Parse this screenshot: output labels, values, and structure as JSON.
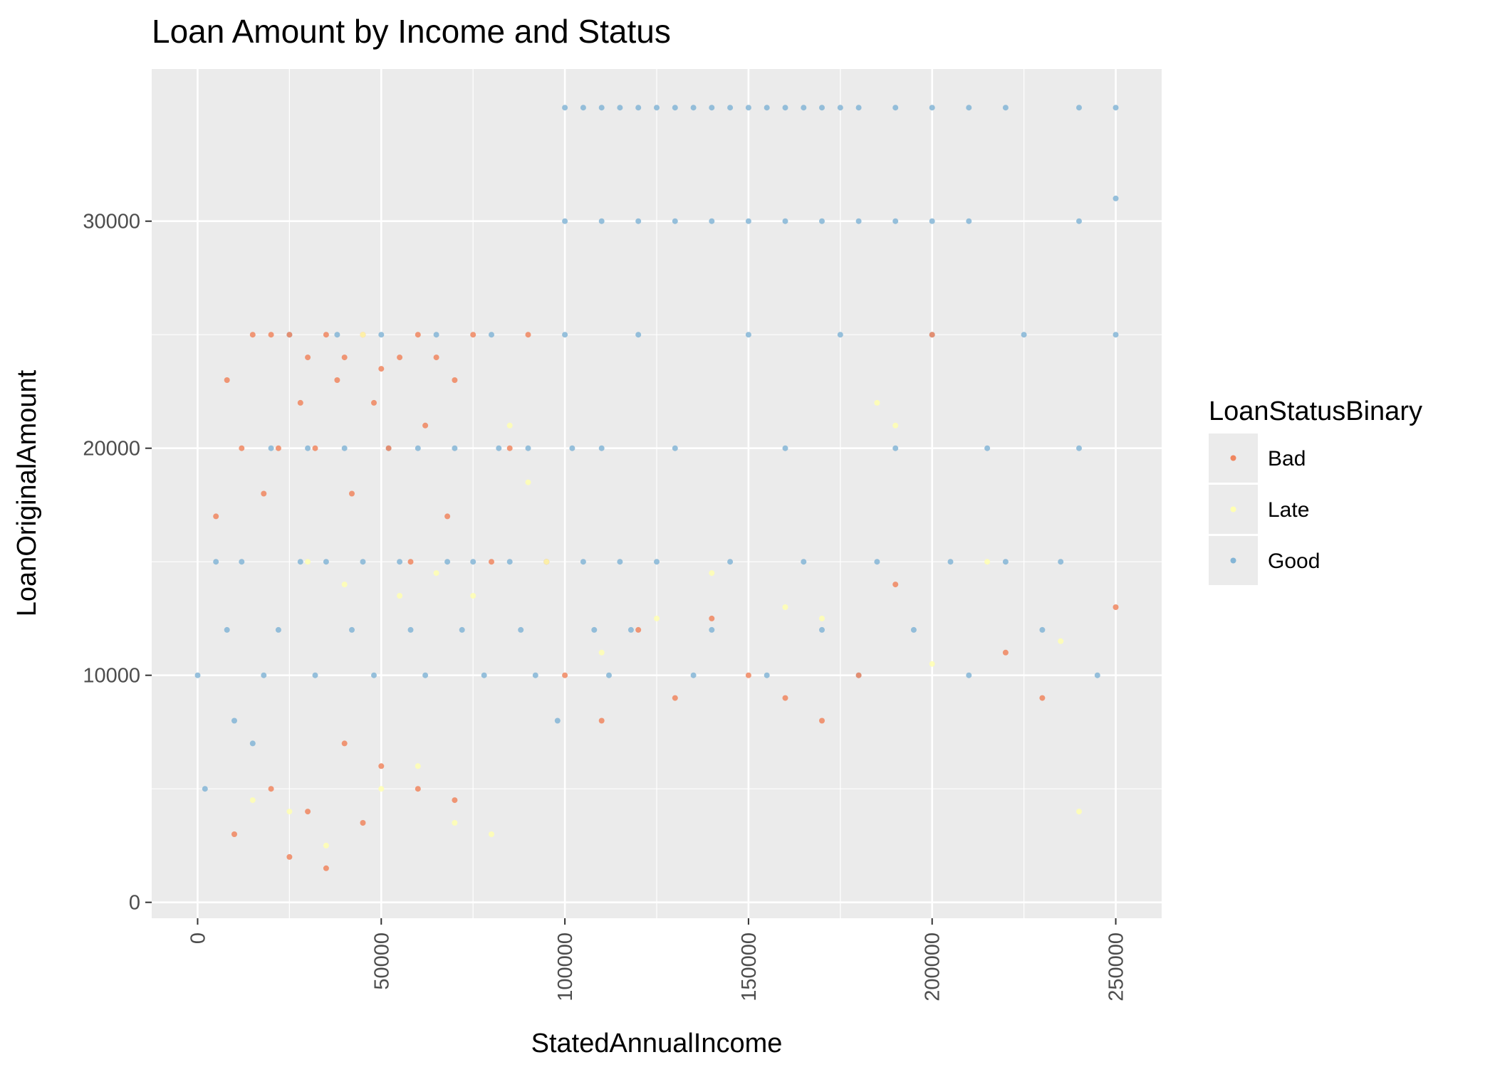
{
  "chart_data": {
    "type": "scatter",
    "title": "Loan Amount by Income and Status",
    "xlabel": "StatedAnnualIncome",
    "ylabel": "LoanOriginalAmount",
    "xlim": [
      -12500,
      262500
    ],
    "ylim": [
      -700,
      36700
    ],
    "x_ticks": [
      0,
      50000,
      100000,
      150000,
      200000,
      250000
    ],
    "x_tick_labels": [
      "0",
      "50000",
      "100000",
      "150000",
      "200000",
      "250000"
    ],
    "y_ticks": [
      0,
      10000,
      20000,
      30000
    ],
    "y_tick_labels": [
      "0",
      "10000",
      "20000",
      "30000"
    ],
    "grid": true,
    "legend": {
      "title": "LoanStatusBinary",
      "placement": "right",
      "entries": [
        "Bad",
        "Late",
        "Good"
      ]
    },
    "series": [
      {
        "name": "Bad",
        "color": "#f0865f",
        "x": [
          5000,
          8000,
          12000,
          15000,
          18000,
          20000,
          22000,
          25000,
          28000,
          30000,
          32000,
          35000,
          38000,
          40000,
          42000,
          45000,
          48000,
          50000,
          52000,
          55000,
          58000,
          60000,
          62000,
          65000,
          68000,
          70000,
          75000,
          80000,
          85000,
          90000,
          95000,
          100000,
          110000,
          120000,
          130000,
          140000,
          150000,
          160000,
          170000,
          180000,
          190000,
          200000,
          220000,
          230000,
          250000,
          10000,
          20000,
          30000,
          40000,
          50000,
          60000,
          70000,
          25000,
          35000,
          45000
        ],
        "y": [
          17000,
          23000,
          20000,
          25000,
          18000,
          25000,
          20000,
          25000,
          22000,
          24000,
          20000,
          25000,
          23000,
          24000,
          18000,
          25000,
          22000,
          23500,
          20000,
          24000,
          15000,
          25000,
          21000,
          24000,
          17000,
          23000,
          25000,
          15000,
          20000,
          25000,
          15000,
          10000,
          8000,
          12000,
          9000,
          12500,
          10000,
          9000,
          8000,
          10000,
          14000,
          25000,
          11000,
          9000,
          13000,
          3000,
          5000,
          4000,
          7000,
          6000,
          5000,
          4500,
          2000,
          1500,
          3500
        ]
      },
      {
        "name": "Late",
        "color": "#ffffb2",
        "x": [
          30000,
          40000,
          45000,
          55000,
          65000,
          75000,
          85000,
          90000,
          95000,
          110000,
          125000,
          140000,
          160000,
          170000,
          185000,
          190000,
          200000,
          215000,
          235000,
          240000,
          15000,
          25000,
          35000,
          50000,
          60000,
          70000,
          80000
        ],
        "y": [
          15000,
          14000,
          25000,
          13500,
          14500,
          13500,
          21000,
          18500,
          15000,
          11000,
          12500,
          14500,
          13000,
          12500,
          22000,
          21000,
          10500,
          15000,
          11500,
          4000,
          4500,
          4000,
          2500,
          5000,
          6000,
          3500,
          3000
        ]
      },
      {
        "name": "Good",
        "color": "#84b5d6",
        "x": [
          0,
          2000,
          5000,
          8000,
          10000,
          12000,
          15000,
          18000,
          20000,
          22000,
          25000,
          28000,
          30000,
          32000,
          35000,
          38000,
          40000,
          42000,
          45000,
          48000,
          50000,
          52000,
          55000,
          58000,
          60000,
          62000,
          65000,
          68000,
          70000,
          72000,
          75000,
          78000,
          80000,
          82000,
          85000,
          88000,
          90000,
          92000,
          95000,
          98000,
          100000,
          102000,
          105000,
          108000,
          110000,
          112000,
          115000,
          118000,
          120000,
          125000,
          130000,
          135000,
          140000,
          145000,
          150000,
          155000,
          160000,
          165000,
          170000,
          175000,
          180000,
          185000,
          190000,
          195000,
          200000,
          205000,
          210000,
          215000,
          220000,
          225000,
          230000,
          235000,
          240000,
          245000,
          250000,
          100000,
          105000,
          110000,
          115000,
          120000,
          125000,
          130000,
          135000,
          140000,
          145000,
          150000,
          155000,
          160000,
          165000,
          170000,
          175000,
          180000,
          190000,
          200000,
          210000,
          220000,
          240000,
          250000,
          100000,
          110000,
          120000,
          130000,
          140000,
          150000,
          160000,
          170000,
          180000,
          190000,
          200000,
          210000,
          240000,
          250000
        ],
        "y": [
          10000,
          5000,
          15000,
          12000,
          8000,
          15000,
          7000,
          10000,
          20000,
          12000,
          25000,
          15000,
          20000,
          10000,
          15000,
          25000,
          20000,
          12000,
          15000,
          10000,
          25000,
          20000,
          15000,
          12000,
          20000,
          10000,
          25000,
          15000,
          20000,
          12000,
          15000,
          10000,
          25000,
          20000,
          15000,
          12000,
          20000,
          10000,
          15000,
          8000,
          25000,
          20000,
          15000,
          12000,
          20000,
          10000,
          15000,
          12000,
          25000,
          15000,
          20000,
          10000,
          12000,
          15000,
          25000,
          10000,
          20000,
          15000,
          12000,
          25000,
          10000,
          15000,
          20000,
          12000,
          25000,
          15000,
          10000,
          20000,
          15000,
          25000,
          12000,
          15000,
          20000,
          10000,
          25000,
          35000,
          35000,
          35000,
          35000,
          35000,
          35000,
          35000,
          35000,
          35000,
          35000,
          35000,
          35000,
          35000,
          35000,
          35000,
          35000,
          35000,
          35000,
          35000,
          35000,
          35000,
          35000,
          35000,
          30000,
          30000,
          30000,
          30000,
          30000,
          30000,
          30000,
          30000,
          30000,
          30000,
          30000,
          30000,
          30000,
          31000
        ]
      }
    ]
  }
}
